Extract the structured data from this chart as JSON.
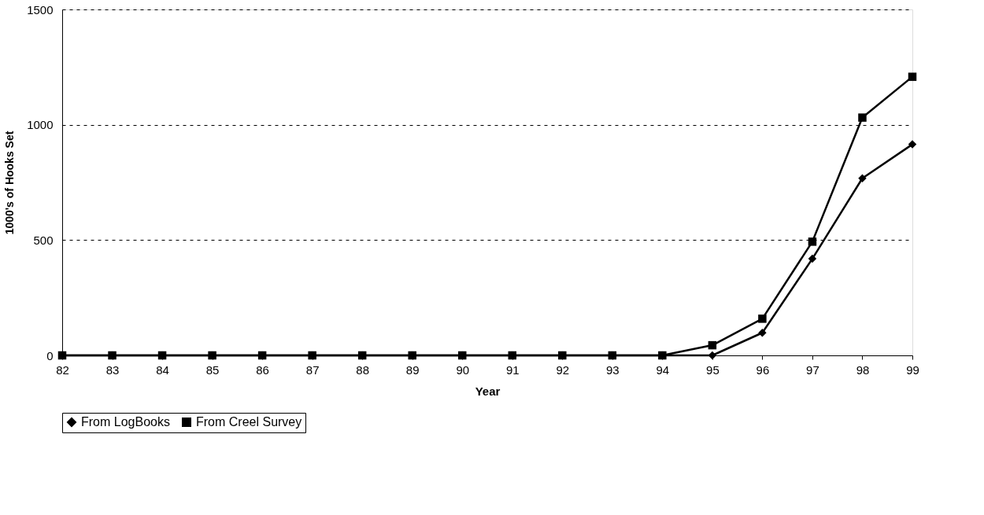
{
  "chart_data": {
    "type": "line",
    "xlabel": "Year",
    "ylabel": "1000's of Hooks Set",
    "categories": [
      "82",
      "83",
      "84",
      "85",
      "86",
      "87",
      "88",
      "89",
      "90",
      "91",
      "92",
      "93",
      "94",
      "95",
      "96",
      "97",
      "98",
      "99"
    ],
    "series": [
      {
        "name": "From LogBooks",
        "color": "#000000",
        "marker": "diamond",
        "values": [
          0,
          0,
          0,
          0,
          0,
          0,
          0,
          0,
          0,
          0,
          0,
          0,
          0,
          0,
          98,
          419,
          768,
          915
        ]
      },
      {
        "name": "From Creel Survey",
        "color": "#000000",
        "marker": "square",
        "values": [
          0,
          0,
          0,
          0,
          0,
          0,
          0,
          0,
          0,
          0,
          0,
          0,
          0,
          44,
          159,
          493,
          1031,
          1208
        ]
      }
    ],
    "ylim": [
      0,
      1500
    ],
    "yticks": [
      0,
      500,
      1000,
      1500
    ],
    "grid": "y",
    "legend": "bottom",
    "line_style": "solid"
  }
}
